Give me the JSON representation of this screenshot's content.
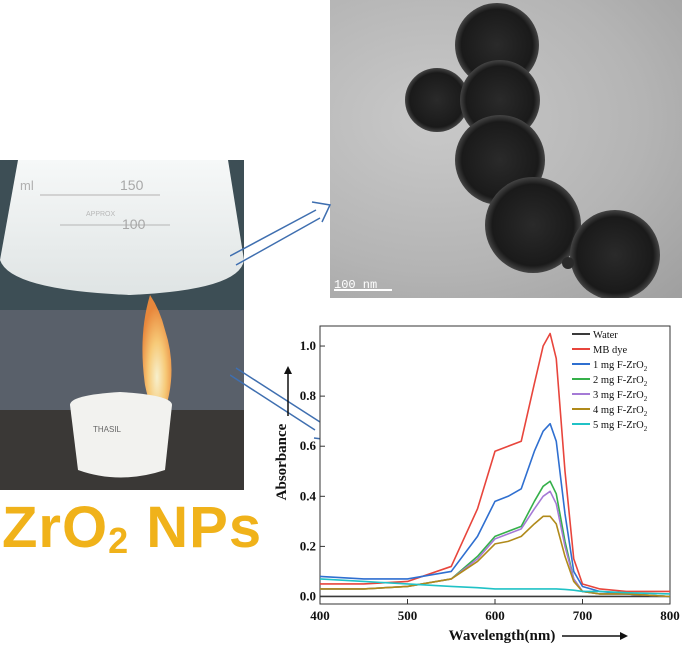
{
  "title": {
    "main": "ZrO",
    "sub": "2",
    "suffix": " NPs"
  },
  "photo": {
    "flask_mark_1": "150",
    "flask_mark_2": "100",
    "flask_mark_3": "ml",
    "flask_brand": "APPROX",
    "crucible_label": "THASIL"
  },
  "tem": {
    "scale_label": "100 nm"
  },
  "colors": {
    "title": "#f0b21a",
    "arrow": "#3f6fb0"
  },
  "chart_data": {
    "type": "line",
    "xlabel": "Wavelength(nm)",
    "ylabel": "Absorbance",
    "xlim": [
      400,
      800
    ],
    "ylim": [
      -0.03,
      1.08
    ],
    "xticks": [
      400,
      500,
      600,
      700,
      800
    ],
    "yticks": [
      0.0,
      0.2,
      0.4,
      0.6,
      0.8,
      1.0
    ],
    "x": [
      400,
      450,
      500,
      550,
      580,
      600,
      615,
      630,
      645,
      655,
      663,
      670,
      680,
      690,
      700,
      720,
      750,
      800
    ],
    "legend": "top-right",
    "series": [
      {
        "name": "Water",
        "color": "#3a3a3a",
        "values": [
          0.0,
          0.0,
          0.0,
          0.0,
          0.0,
          0.0,
          0.0,
          0.0,
          0.0,
          0.0,
          0.0,
          0.0,
          0.0,
          0.0,
          0.0,
          0.0,
          0.0,
          0.0
        ]
      },
      {
        "name": "MB dye",
        "color": "#e8453c",
        "values": [
          0.05,
          0.05,
          0.06,
          0.12,
          0.35,
          0.58,
          0.6,
          0.62,
          0.85,
          1.0,
          1.05,
          0.95,
          0.5,
          0.15,
          0.05,
          0.03,
          0.02,
          0.02
        ]
      },
      {
        "name": "1 mg F-ZrO2",
        "color": "#2f6fd0",
        "values": [
          0.08,
          0.07,
          0.07,
          0.1,
          0.24,
          0.38,
          0.4,
          0.43,
          0.58,
          0.66,
          0.69,
          0.62,
          0.33,
          0.1,
          0.04,
          0.02,
          0.01,
          0.0
        ]
      },
      {
        "name": "2 mg F-ZrO2",
        "color": "#35b04a",
        "values": [
          0.03,
          0.03,
          0.04,
          0.07,
          0.16,
          0.24,
          0.26,
          0.28,
          0.38,
          0.44,
          0.46,
          0.41,
          0.22,
          0.07,
          0.02,
          0.01,
          0.01,
          0.0
        ]
      },
      {
        "name": "3 mg F-ZrO2",
        "color": "#a57ad6",
        "values": [
          0.03,
          0.03,
          0.04,
          0.07,
          0.15,
          0.23,
          0.25,
          0.27,
          0.35,
          0.4,
          0.42,
          0.37,
          0.2,
          0.07,
          0.02,
          0.01,
          0.01,
          0.0
        ]
      },
      {
        "name": "4 mg F-ZrO2",
        "color": "#b08a1a",
        "values": [
          0.03,
          0.03,
          0.04,
          0.07,
          0.14,
          0.21,
          0.22,
          0.24,
          0.29,
          0.32,
          0.32,
          0.29,
          0.16,
          0.06,
          0.02,
          0.01,
          0.01,
          0.0
        ]
      },
      {
        "name": "5 mg F-ZrO2",
        "color": "#20c2c6",
        "values": [
          0.07,
          0.06,
          0.05,
          0.04,
          0.035,
          0.03,
          0.03,
          0.03,
          0.03,
          0.03,
          0.03,
          0.03,
          0.028,
          0.025,
          0.02,
          0.02,
          0.015,
          0.01
        ]
      }
    ]
  }
}
